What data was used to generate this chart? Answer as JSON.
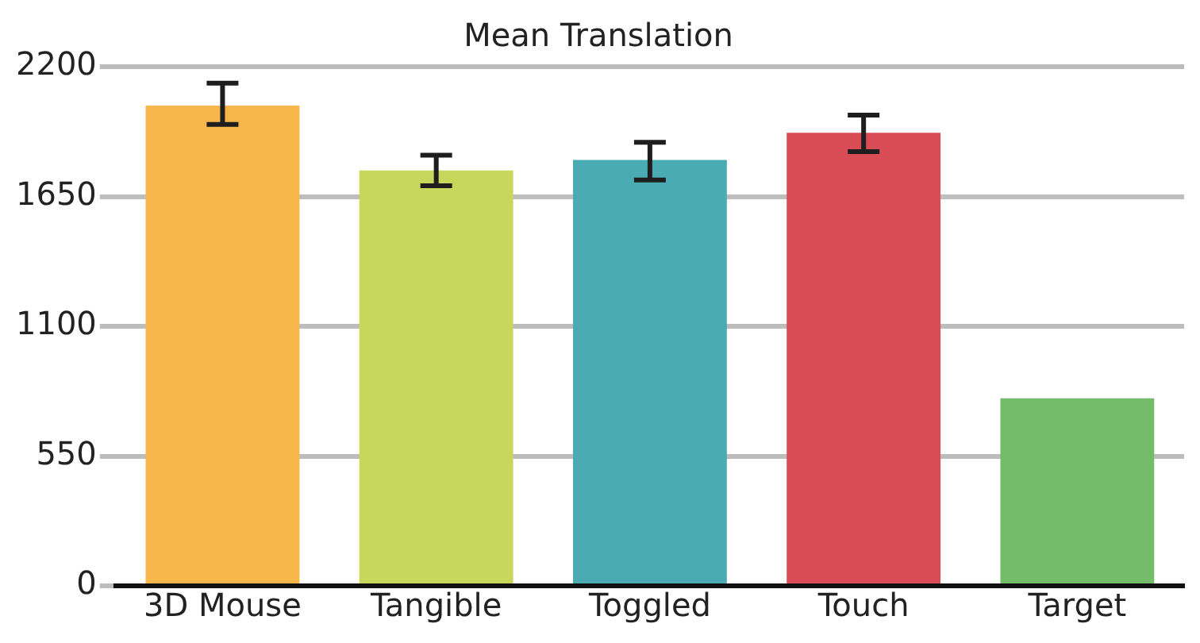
{
  "chart_data": {
    "type": "bar",
    "title": "Mean Translation",
    "categories": [
      "3D Mouse",
      "Tangible",
      "Toggled",
      "Touch",
      "Target"
    ],
    "values": [
      2035,
      1760,
      1805,
      1920,
      795
    ],
    "colors": [
      "#f6b64a",
      "#c7d75c",
      "#4babb3",
      "#d94c55",
      "#74bb6a"
    ],
    "errors": [
      [
        1955,
        2130
      ],
      [
        1695,
        1825
      ],
      [
        1720,
        1880
      ],
      [
        1840,
        1995
      ],
      null
    ],
    "ylim": [
      0,
      2200
    ],
    "yticks": [
      0,
      550,
      1100,
      1650,
      2200
    ],
    "grid": "y",
    "legend": false
  }
}
